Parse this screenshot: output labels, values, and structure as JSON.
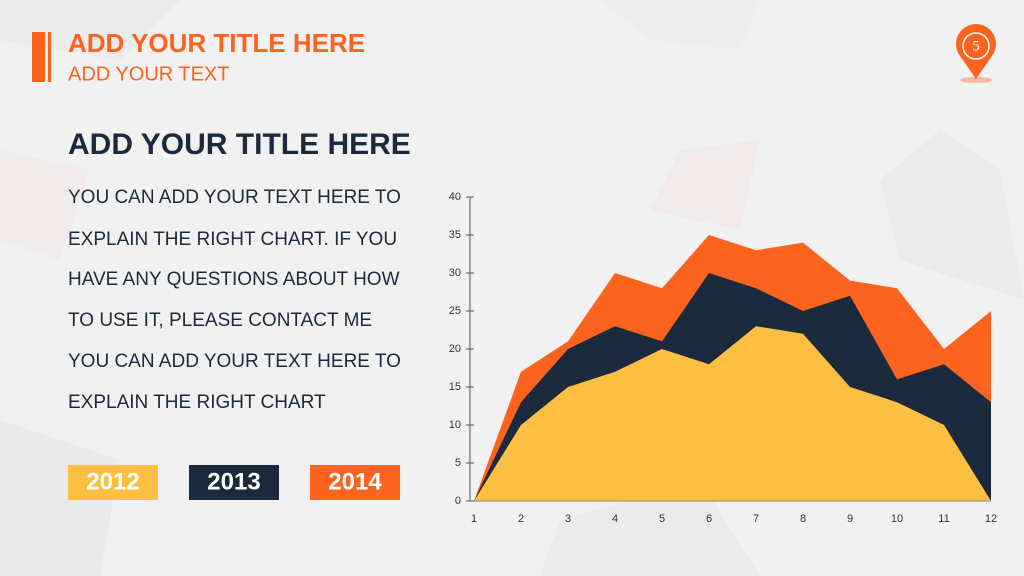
{
  "header": {
    "title": "ADD YOUR TITLE HERE",
    "subtitle": "ADD YOUR TEXT",
    "page_number": "5"
  },
  "body": {
    "title": "ADD YOUR TITLE HERE",
    "lines": [
      "YOU CAN ADD YOUR TEXT  HERE  TO",
      "EXPLAIN THE RIGHT CHART.   IF YOU",
      "HAVE ANY QUESTIONS ABOUT HOW",
      "TO  USE  IT,  PLEASE  CONTACT  ME",
      "YOU CAN ADD YOUR TEXT  HERE  TO",
      "EXPLAIN THE RIGHT CHART"
    ]
  },
  "chart_data": {
    "type": "area",
    "x": [
      1,
      2,
      3,
      4,
      5,
      6,
      7,
      8,
      9,
      10,
      11,
      12
    ],
    "xlim": [
      1,
      12
    ],
    "ylim": [
      0,
      40
    ],
    "yticks": [
      0,
      5,
      10,
      15,
      20,
      25,
      30,
      35,
      40
    ],
    "series": [
      {
        "name": "2014",
        "color": "#fb631f",
        "values": [
          0,
          17,
          21,
          30,
          28,
          35,
          33,
          34,
          29,
          28,
          20,
          25
        ]
      },
      {
        "name": "2013",
        "color": "#1c2a3d",
        "values": [
          0,
          13,
          20,
          23,
          21,
          30,
          28,
          25,
          27,
          16,
          18,
          13
        ]
      },
      {
        "name": "2012",
        "color": "#fcbf41",
        "values": [
          0,
          10,
          15,
          17,
          20,
          18,
          23,
          22,
          15,
          13,
          10,
          0
        ]
      }
    ]
  }
}
